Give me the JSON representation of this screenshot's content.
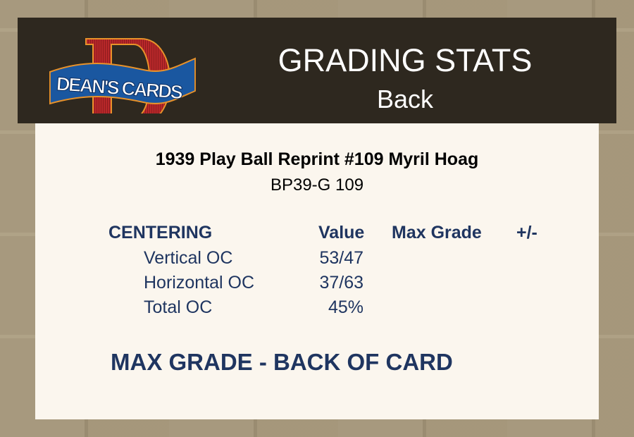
{
  "logo": {
    "text": "DEAN'S CARDS",
    "letter": "D"
  },
  "header": {
    "title": "GRADING STATS",
    "subtitle": "Back"
  },
  "card": {
    "name": "1939 Play Ball Reprint #109 Myril Hoag",
    "code": "BP39-G 109"
  },
  "table": {
    "headers": {
      "section": "CENTERING",
      "value": "Value",
      "max_grade": "Max Grade",
      "plus_minus": "+/-"
    },
    "rows": [
      {
        "label": "Vertical OC",
        "value": "53/47"
      },
      {
        "label": "Horizontal OC",
        "value": "37/63"
      },
      {
        "label": "Total OC",
        "value": "45%"
      }
    ]
  },
  "footer": {
    "max_grade_label": "MAX GRADE - BACK OF CARD"
  },
  "colors": {
    "header_bg": "#2e281f",
    "panel_bg": "#fbf6ee",
    "text_navy": "#1f3560",
    "logo_red": "#b8282a",
    "logo_blue": "#1a57a0"
  }
}
